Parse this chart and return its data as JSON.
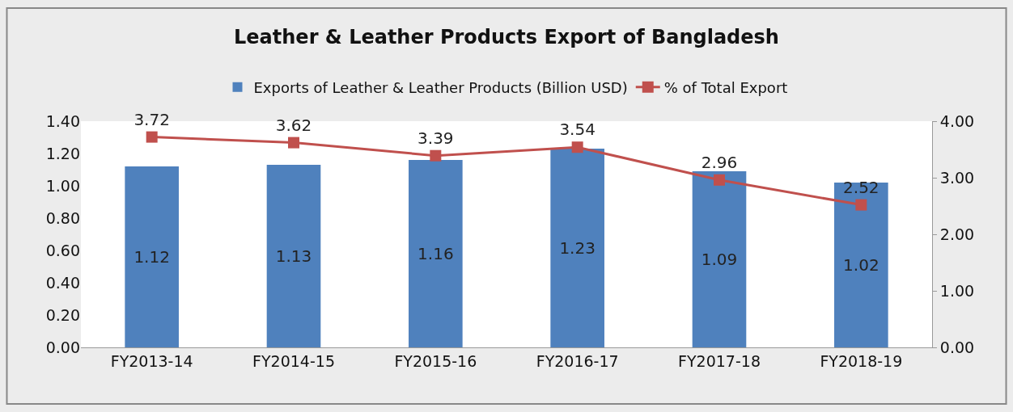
{
  "chart_data": {
    "type": "bar",
    "title": "Leather & Leather Products Export of Bangladesh",
    "categories": [
      "FY2013-14",
      "FY2014-15",
      "FY2015-16",
      "FY2016-17",
      "FY2017-18",
      "FY2018-19"
    ],
    "series": [
      {
        "name": "Exports of Leather & Leather Products (Billion USD)",
        "color": "#4f81bd",
        "values": [
          1.12,
          1.13,
          1.16,
          1.23,
          1.09,
          1.02
        ]
      },
      {
        "name": "% of Total Export",
        "type": "line",
        "axis": "y2",
        "color": "#c0504d",
        "marker": "square",
        "line_style": "solid",
        "values": [
          3.72,
          3.62,
          3.39,
          3.54,
          2.96,
          2.52
        ]
      }
    ],
    "ylim": [
      0,
      1.4
    ],
    "yticks": [
      {
        "value": 0,
        "label": "0.00"
      },
      {
        "value": 0.2,
        "label": "0.20"
      },
      {
        "value": 0.4,
        "label": "0.40"
      },
      {
        "value": 0.6,
        "label": "0.60"
      },
      {
        "value": 0.8,
        "label": "0.80"
      },
      {
        "value": 1,
        "label": "1.00"
      },
      {
        "value": 1.2,
        "label": "1.20"
      },
      {
        "value": 1.4,
        "label": "1.40"
      }
    ],
    "y2lim": [
      0,
      4
    ],
    "y2ticks": [
      {
        "value": 0,
        "label": "0.00"
      },
      {
        "value": 1,
        "label": "1.00"
      },
      {
        "value": 2,
        "label": "2.00"
      },
      {
        "value": 3,
        "label": "3.00"
      },
      {
        "value": 4,
        "label": "4.00"
      }
    ],
    "data_labels": true,
    "grid": false,
    "legend": "top"
  }
}
